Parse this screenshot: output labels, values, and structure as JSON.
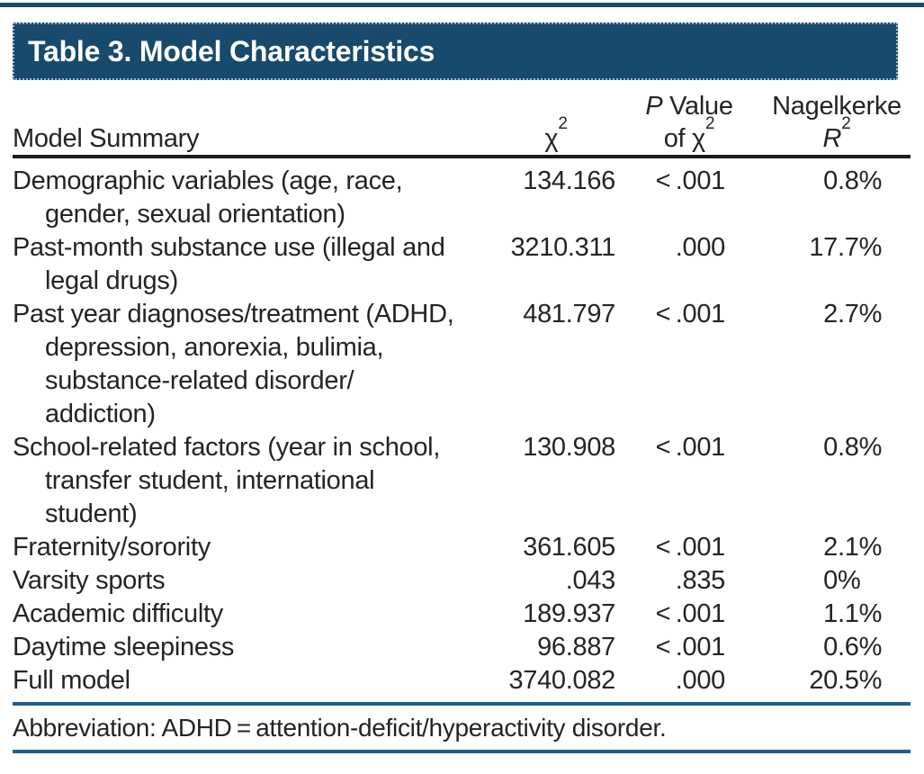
{
  "colors": {
    "header_bar_blue": "#174A6C",
    "rule_blue": "#205E8E",
    "rule_black": "#1C1C1C",
    "text": "#242424",
    "title_text": "#FFFFFF"
  },
  "title": "Table 3. Model Characteristics",
  "table": {
    "columns": {
      "model_summary": "Model Summary",
      "chi2": {
        "base": "χ",
        "sup": "2"
      },
      "p_value": {
        "line1_italic": "P",
        "line1_rest": " Value",
        "line2_pre": "of χ",
        "line2_sup": "2"
      },
      "nagelkerke": {
        "line1": "Nagelkerke",
        "line2_italic": "R",
        "line2_sup": "2"
      }
    },
    "rows": [
      {
        "lines": [
          "Demographic variables (age, race,",
          "gender, sexual orientation)"
        ],
        "chi2": "134.166",
        "p": "< .001",
        "r2": "0.8%"
      },
      {
        "lines": [
          "Past-month substance use (illegal and",
          "legal drugs)"
        ],
        "chi2": "3210.311",
        "p": ".000",
        "r2": "17.7%"
      },
      {
        "lines": [
          "Past year diagnoses/treatment (ADHD,",
          "depression, anorexia, bulimia,",
          "substance-related disorder/",
          "addiction)"
        ],
        "chi2": "481.797",
        "p": "< .001",
        "r2": "2.7%"
      },
      {
        "lines": [
          "School-related factors (year in school,",
          "transfer student, international",
          "student)"
        ],
        "chi2": "130.908",
        "p": "< .001",
        "r2": "0.8%"
      },
      {
        "lines": [
          "Fraternity/sorority"
        ],
        "chi2": "361.605",
        "p": "< .001",
        "r2": "2.1%"
      },
      {
        "lines": [
          "Varsity sports"
        ],
        "chi2": ".043",
        "p": ".835",
        "r2": "0%"
      },
      {
        "lines": [
          "Academic difficulty"
        ],
        "chi2": "189.937",
        "p": "< .001",
        "r2": "1.1%"
      },
      {
        "lines": [
          "Daytime sleepiness"
        ],
        "chi2": "96.887",
        "p": "< .001",
        "r2": "0.6%"
      },
      {
        "lines": [
          "Full model"
        ],
        "chi2": "3740.082",
        "p": ".000",
        "r2": "20.5%"
      }
    ]
  },
  "footnote": "Abbreviation: ADHD = attention-deficit/hyperactivity disorder."
}
